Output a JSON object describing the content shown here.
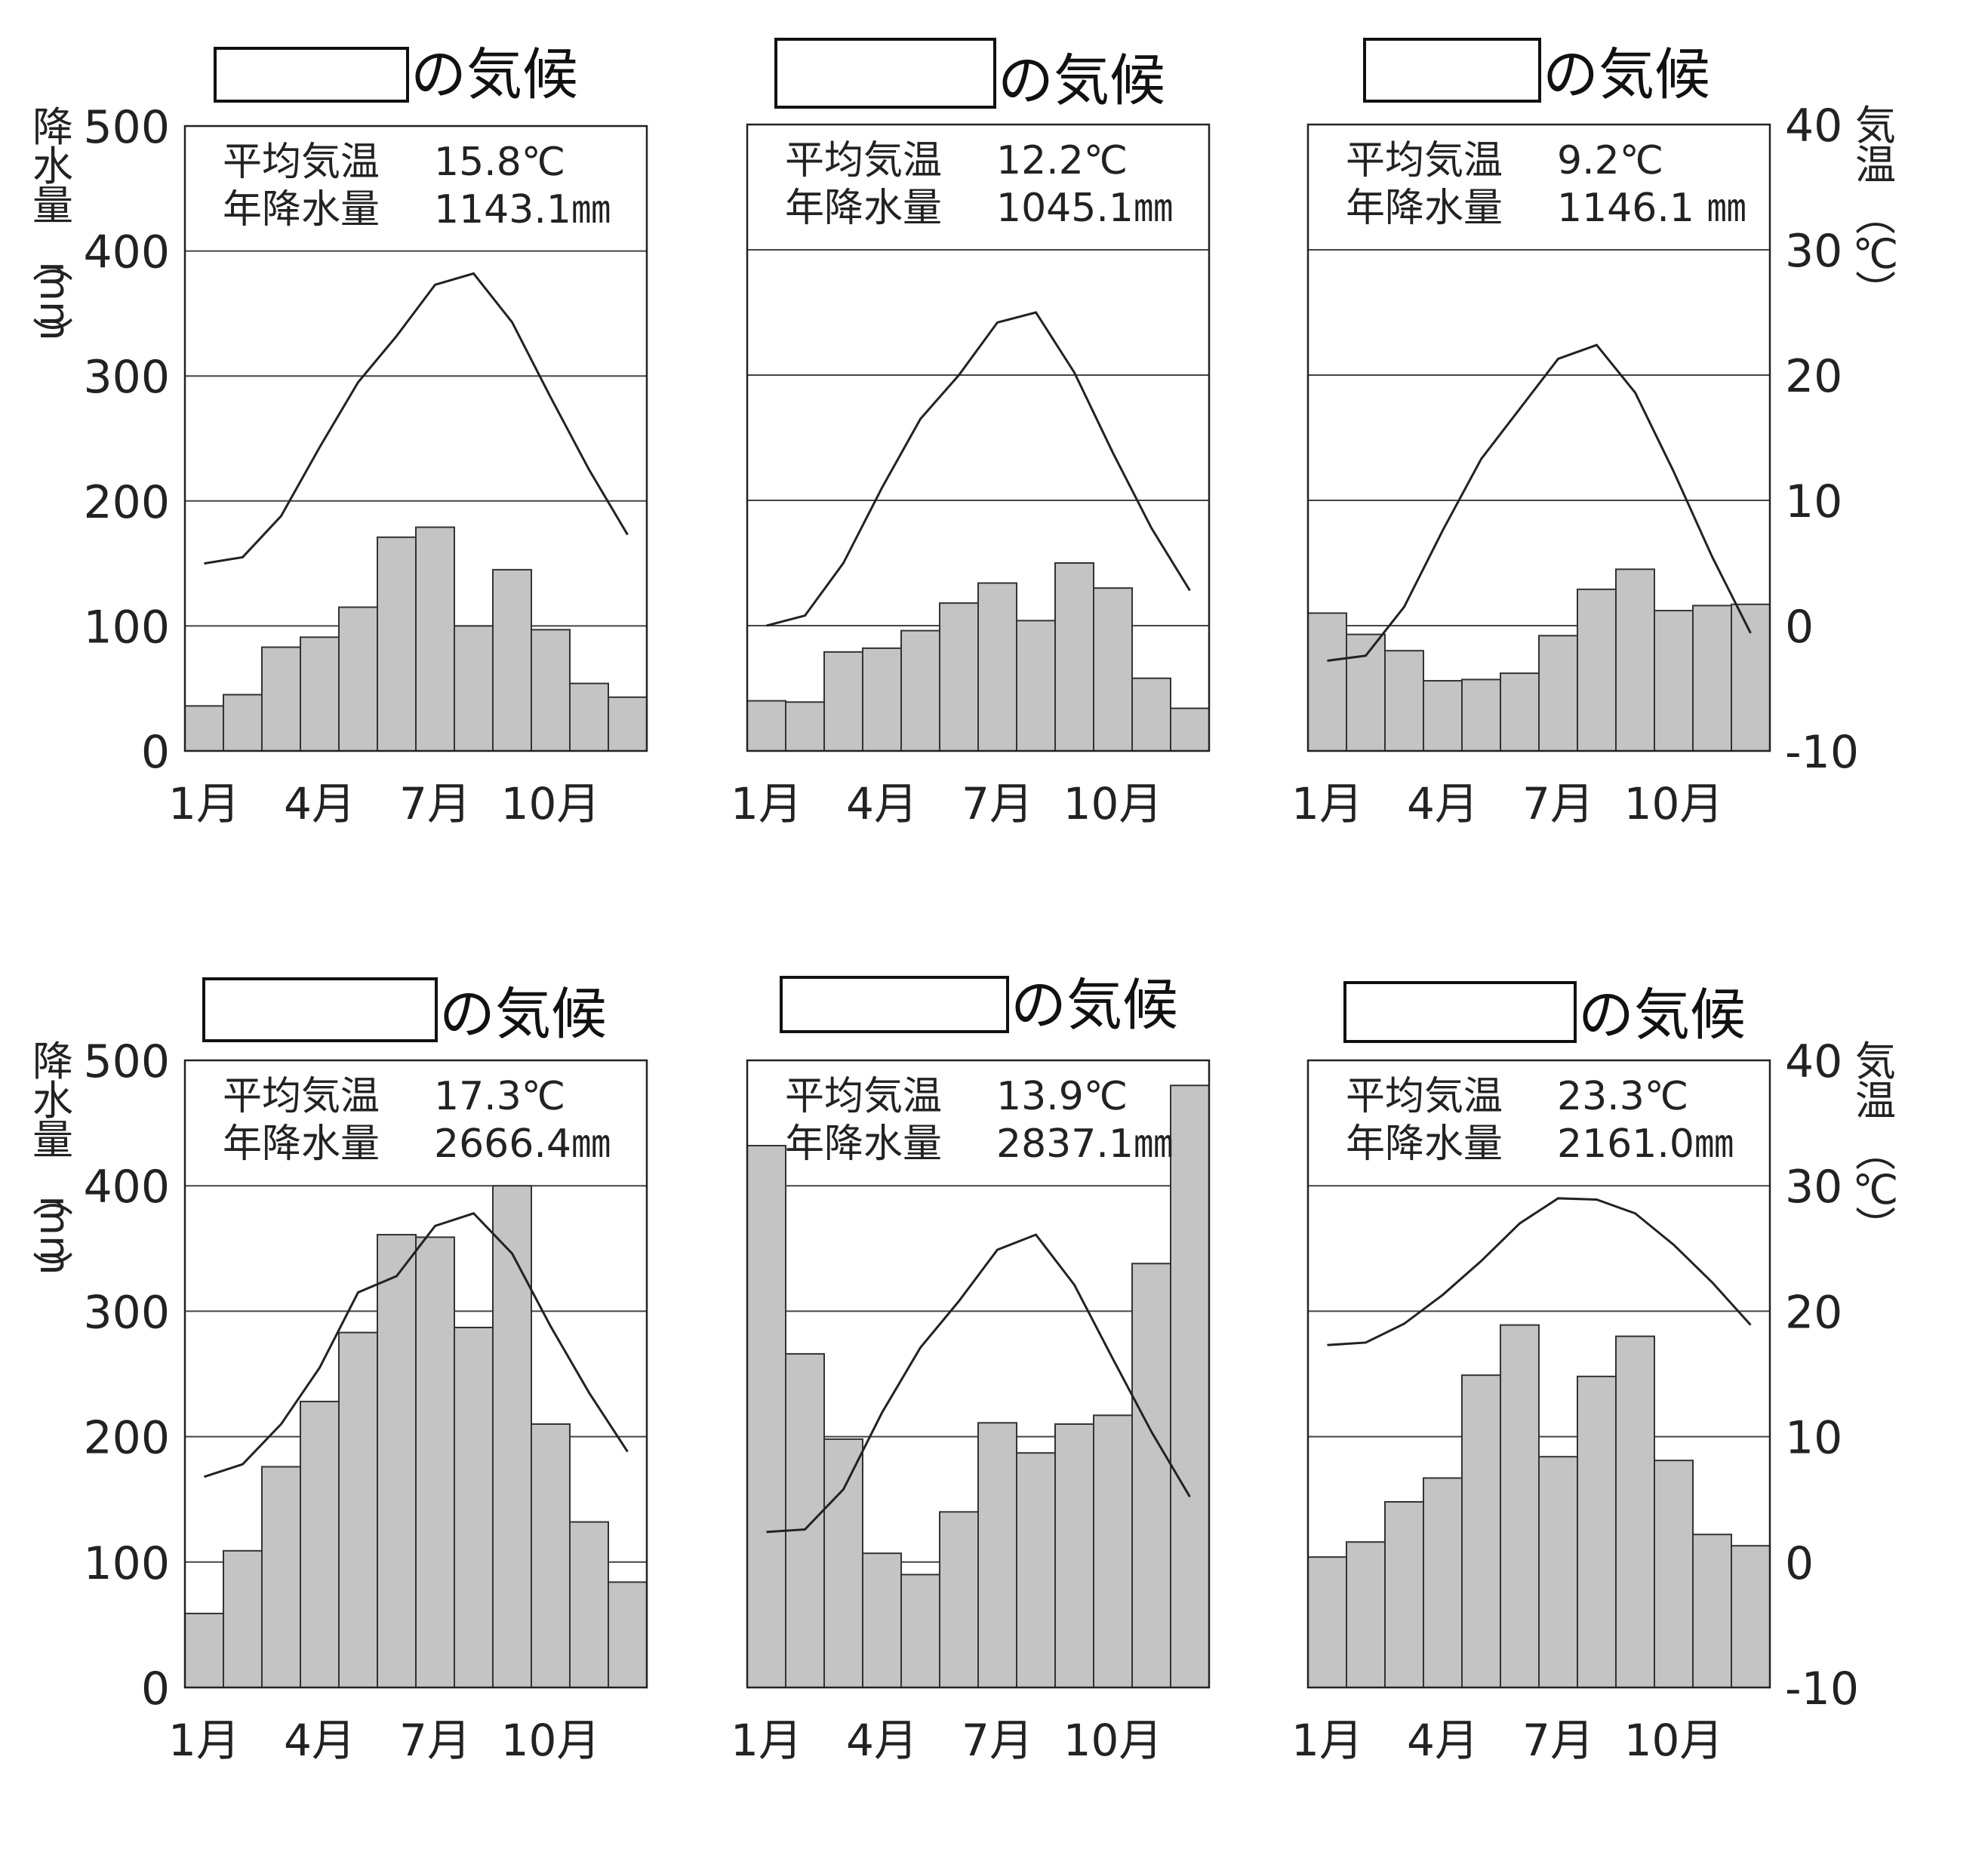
{
  "title_suffix": "の気候",
  "stat_labels": {
    "temp": "平均気温",
    "precip": "年降水量"
  },
  "left_axis": {
    "label_chars": [
      "降",
      "水",
      "量"
    ],
    "unit_paren_open": "︵",
    "unit": "mm",
    "unit_paren_close": "︶",
    "ticks": [
      "500",
      "400",
      "300",
      "200",
      "100",
      "0"
    ]
  },
  "right_axis": {
    "label_chars": [
      "気",
      "温"
    ],
    "unit_paren_open": "︵",
    "unit": "℃",
    "unit_paren_close": "︶",
    "ticks": [
      "40",
      "30",
      "20",
      "10",
      "0",
      "-10"
    ]
  },
  "month_labels": [
    "1月",
    "4月",
    "7月",
    "10月"
  ],
  "chart_data": [
    {
      "type": "bar+line",
      "title": "",
      "stats": {
        "temp": "15.8℃",
        "precip": "1143.1㎜"
      },
      "categories": [
        1,
        2,
        3,
        4,
        5,
        6,
        7,
        8,
        9,
        10,
        11,
        12
      ],
      "precip": [
        36,
        45,
        83,
        91,
        115,
        171,
        179,
        100,
        145,
        97,
        54,
        43
      ],
      "temp": [
        5.0,
        5.5,
        8.8,
        14.3,
        19.5,
        23.2,
        27.3,
        28.2,
        24.3,
        18.3,
        12.5,
        7.3
      ],
      "ylim_precip": [
        0,
        500
      ],
      "ylim_temp": [
        -10,
        40
      ]
    },
    {
      "type": "bar+line",
      "title": "",
      "stats": {
        "temp": "12.2℃",
        "precip": "1045.1㎜"
      },
      "categories": [
        1,
        2,
        3,
        4,
        5,
        6,
        7,
        8,
        9,
        10,
        11,
        12
      ],
      "precip": [
        40,
        39,
        79,
        82,
        96,
        118,
        134,
        104,
        150,
        130,
        58,
        34
      ],
      "temp": [
        0.0,
        0.8,
        5.0,
        11.0,
        16.5,
        20.0,
        24.2,
        25.0,
        20.2,
        13.8,
        7.8,
        2.8
      ],
      "ylim_precip": [
        0,
        500
      ],
      "ylim_temp": [
        -10,
        40
      ]
    },
    {
      "type": "bar+line",
      "title": "",
      "stats": {
        "temp": "9.2℃",
        "precip": "1146.1 ㎜"
      },
      "categories": [
        1,
        2,
        3,
        4,
        5,
        6,
        7,
        8,
        9,
        10,
        11,
        12
      ],
      "precip": [
        110,
        93,
        80,
        56,
        57,
        62,
        92,
        129,
        145,
        112,
        116,
        117
      ],
      "temp": [
        -2.8,
        -2.4,
        1.5,
        7.6,
        13.3,
        17.3,
        21.3,
        22.4,
        18.6,
        12.3,
        5.5,
        -0.6
      ],
      "ylim_precip": [
        0,
        500
      ],
      "ylim_temp": [
        -10,
        40
      ]
    },
    {
      "type": "bar+line",
      "title": "",
      "stats": {
        "temp": "17.3℃",
        "precip": "2666.4㎜"
      },
      "categories": [
        1,
        2,
        3,
        4,
        5,
        6,
        7,
        8,
        9,
        10,
        11,
        12
      ],
      "precip": [
        59,
        109,
        176,
        228,
        283,
        361,
        359,
        287,
        400,
        210,
        132,
        84
      ],
      "temp": [
        6.8,
        7.8,
        11.0,
        15.5,
        21.5,
        22.8,
        26.8,
        27.8,
        24.6,
        18.8,
        13.5,
        8.8
      ],
      "ylim_precip": [
        0,
        500
      ],
      "ylim_temp": [
        -10,
        40
      ]
    },
    {
      "type": "bar+line",
      "title": "",
      "stats": {
        "temp": "13.9℃",
        "precip": "2837.1㎜"
      },
      "categories": [
        1,
        2,
        3,
        4,
        5,
        6,
        7,
        8,
        9,
        10,
        11,
        12
      ],
      "precip": [
        432,
        266,
        198,
        107,
        90,
        140,
        211,
        187,
        210,
        217,
        338,
        480
      ],
      "temp": [
        2.4,
        2.6,
        5.8,
        11.9,
        17.1,
        20.8,
        24.9,
        26.1,
        22.1,
        16.2,
        10.4,
        5.2
      ],
      "ylim_precip": [
        0,
        500
      ],
      "ylim_temp": [
        -10,
        40
      ]
    },
    {
      "type": "bar+line",
      "title": "",
      "stats": {
        "temp": "23.3℃",
        "precip": "2161.0㎜"
      },
      "categories": [
        1,
        2,
        3,
        4,
        5,
        6,
        7,
        8,
        9,
        10,
        11,
        12
      ],
      "precip": [
        104,
        116,
        148,
        167,
        249,
        289,
        184,
        248,
        280,
        181,
        122,
        113
      ],
      "temp": [
        17.3,
        17.5,
        19.0,
        21.3,
        24.0,
        27.0,
        29.0,
        28.9,
        27.8,
        25.3,
        22.3,
        18.9
      ],
      "ylim_precip": [
        0,
        500
      ],
      "ylim_temp": [
        -10,
        40
      ]
    }
  ]
}
